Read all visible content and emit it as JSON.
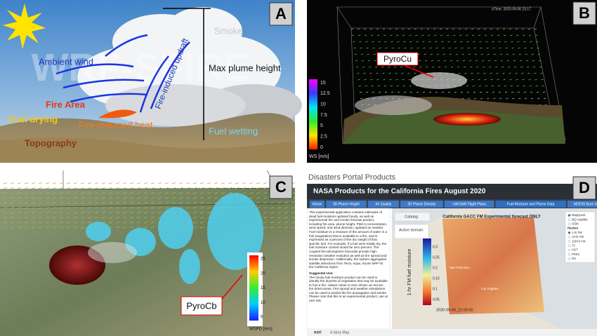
{
  "panel_a": {
    "letter": "A",
    "watermark": "WRF-SFIRE",
    "smoke": "Smoke",
    "ambient_wind": "Ambient wind",
    "max_plume_height": "Max plume height",
    "updraft": "Fire-induced updraft",
    "fire_area": "Fire Area",
    "fuel_drying": "Fuel drying",
    "released_heat": "Fire-released heat",
    "fuel_wetting": "Fuel wetting",
    "topography": "Topography"
  },
  "panel_b": {
    "letter": "B",
    "time": "aTime: 2020-09-06 23:17",
    "pyrocu": "PyroCu",
    "colorbar_ticks": [
      "15",
      "12.5",
      "10",
      "7.5",
      "5",
      "2.5",
      "0"
    ],
    "colorbar_label": "WS [m/s]"
  },
  "panel_c": {
    "letter": "C",
    "pyrocb": "PyroCb",
    "colorbar_ticks": [
      "25",
      "20",
      "15",
      "10",
      "5"
    ],
    "colorbar_label": "WSPD [m/s]"
  },
  "panel_d": {
    "letter": "D",
    "portal_title": "Disasters Portal Products",
    "banner_title": "NASA Products for the California Fires August 2020",
    "tabs": [
      "Home",
      "3D Plume Height",
      "Air Quality",
      "3D Plume Density",
      "UAVSAR Flight Plans",
      "Fuel Moisture and Plume Data",
      "MODIS Burn Scars"
    ],
    "intro": "This experimental application contains estimates of dead fuel-moisture updated hourly, as well as experimental fire and smoke forecast product, including fire area, plume height, PM2.5 concentration, wind speed, and wind direction, updated as needed. Fuel moisture is a measure of the amount of water in a fuel (vegetation) that is available to a fire, and is expressed as a percent of the dry weight of that specific fuel. For example, if a fuel were totally dry, the fuel moisture content would be zero percent. The coupled fire-atmosphere forecasts provide high-resolution weather evolution as well as fire spread and smoke dispersion. Additionally, the system aggregates satellite detections from Terra, Aqua, Suomi NPP for the California region.",
    "suggested_use_heading": "Suggested Use:",
    "suggested_use": "The hourly fuel moisture product can be used to identify the dryness of vegetation that may be available to fuel a fire. Values closer to zero shown as red are the driest areas. Fire spread and weather simulations can be used to predict the fire propagation and smoke. Please note that this is an experimental product, use at own risk.",
    "map_title": "California GACC FM Experimental forecast ONLY",
    "catalog": "Catalog",
    "active_domain": "Active domain",
    "colorbar_label": "1-hr FM fuel moisture",
    "colorbar_ticks": [
      "0.3",
      "0.25",
      "0.2",
      "0.15",
      "0.1",
      "0.05"
    ],
    "timestamp": "2020-09-09_21:00:00",
    "city_1": "San Francisco",
    "city_2": "Los Angeles",
    "layers": [
      "MapQuest",
      "MQ Satellite",
      "OSM",
      "Rasters",
      "1-hr FM",
      "10-hr FM",
      "100-hr FM",
      "T2",
      "HGT",
      "PREC",
      "RH"
    ],
    "footer_brand": "esri",
    "footer_text": "A Story Map"
  }
}
